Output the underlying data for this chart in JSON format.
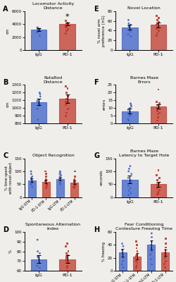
{
  "blue": "#3a5fc8",
  "red": "#c0392b",
  "blue_fill": "#3a5fc8",
  "red_fill": "#c0392b",
  "bg_color": "#f0eeeb",
  "panel_A": {
    "title": "Locomotor Activity\nDistance",
    "label": "A",
    "groups": [
      "IgG",
      "PD-1"
    ],
    "means": [
      3200,
      4000
    ],
    "sems": [
      220,
      230
    ],
    "ylabel": "cm",
    "ylim": [
      0,
      6000
    ],
    "yticks": [
      0,
      2000,
      4000,
      6000
    ],
    "star": true,
    "igg_dots": [
      2200,
      2700,
      2900,
      3000,
      3050,
      3100,
      3200,
      3300,
      3400,
      3500
    ],
    "pd1_dots": [
      2600,
      3000,
      3200,
      3500,
      3600,
      3800,
      3900,
      4000,
      4100,
      4200,
      4500
    ]
  },
  "panel_B": {
    "title": "RotaRod\nDistance",
    "label": "B",
    "groups": [
      "IgG",
      "PD-1"
    ],
    "means": [
      1080,
      1120
    ],
    "sems": [
      45,
      55
    ],
    "ylabel": "cm",
    "ylim": [
      800,
      1300
    ],
    "yticks": [
      800,
      900,
      1000,
      1100,
      1200,
      1300
    ],
    "igg_dots": [
      850,
      990,
      1030,
      1050,
      1060,
      1080,
      1090,
      1110,
      1150,
      1180,
      1200
    ],
    "pd1_dots": [
      900,
      940,
      990,
      1040,
      1060,
      1080,
      1120,
      1150,
      1200,
      1250,
      1280
    ]
  },
  "panel_C": {
    "title": "Object Recognition",
    "label": "C",
    "groups": [
      "IgG-STM",
      "PD-1-STM",
      "IgG-LTM",
      "PD-1-LTM"
    ],
    "means": [
      65,
      60,
      70,
      57
    ],
    "sems": [
      7,
      7,
      6,
      7
    ],
    "ylabel": "% time spent\nwith novel object",
    "ylim": [
      0,
      150
    ],
    "yticks": [
      0,
      50,
      100,
      150
    ],
    "igg_stm_dots": [
      40,
      50,
      55,
      60,
      65,
      70,
      75,
      80,
      90,
      100
    ],
    "pd1_stm_dots": [
      35,
      45,
      50,
      55,
      60,
      65,
      70,
      80,
      90,
      100
    ],
    "igg_ltm_dots": [
      50,
      55,
      65,
      70,
      75,
      80,
      85,
      90,
      95,
      100
    ],
    "pd1_ltm_dots": [
      35,
      40,
      45,
      50,
      55,
      60,
      65,
      70,
      80,
      100
    ]
  },
  "panel_D": {
    "title": "Spontaneous Alternation\nIndex",
    "label": "D",
    "groups": [
      "IgG",
      "PD-1"
    ],
    "means": [
      72,
      72
    ],
    "sems": [
      4,
      4
    ],
    "ylabel": "%",
    "ylim": [
      60,
      100
    ],
    "yticks": [
      60,
      70,
      80,
      90,
      100
    ],
    "igg_dots": [
      63,
      65,
      68,
      70,
      72,
      74,
      75,
      78,
      80,
      92
    ],
    "pd1_dots": [
      60,
      63,
      65,
      68,
      70,
      72,
      74,
      76,
      78,
      80,
      85,
      88
    ]
  },
  "panel_E": {
    "title": "Novel Location",
    "label": "E",
    "groups": [
      "IgG",
      "PD-1"
    ],
    "means": [
      47,
      52
    ],
    "sems": [
      5,
      5
    ],
    "ylabel": "% novel arm\npreference (±G)",
    "ylim": [
      0,
      80
    ],
    "yticks": [
      0,
      20,
      40,
      60,
      80
    ],
    "igg_dots": [
      28,
      32,
      38,
      42,
      46,
      48,
      50,
      52,
      55,
      62
    ],
    "pd1_dots": [
      30,
      35,
      40,
      44,
      48,
      52,
      55,
      58,
      62,
      66,
      70
    ]
  },
  "panel_F": {
    "title": "Barnes Maze\nErrors",
    "label": "F",
    "groups": [
      "IgG",
      "PD-1"
    ],
    "means": [
      8,
      11
    ],
    "sems": [
      1.5,
      1.5
    ],
    "ylabel": "errors",
    "ylim": [
      0,
      25
    ],
    "yticks": [
      0,
      5,
      10,
      15,
      20,
      25
    ],
    "igg_dots": [
      2,
      3,
      5,
      6,
      7,
      8,
      9,
      10,
      11,
      12,
      13
    ],
    "pd1_dots": [
      2,
      4,
      6,
      7,
      8,
      9,
      10,
      11,
      12,
      13,
      14,
      22
    ]
  },
  "panel_G": {
    "title": "Barnes Maze\nLatency to Target Hole",
    "label": "G",
    "groups": [
      "IgG",
      "PD-1"
    ],
    "means": [
      68,
      50
    ],
    "sems": [
      15,
      10
    ],
    "ylabel": "seconds",
    "ylim": [
      0,
      150
    ],
    "yticks": [
      0,
      50,
      100,
      150
    ],
    "igg_dots": [
      8,
      15,
      25,
      35,
      45,
      55,
      65,
      75,
      90,
      100,
      110,
      120
    ],
    "pd1_dots": [
      10,
      15,
      20,
      28,
      35,
      45,
      50,
      55,
      65,
      75,
      85,
      105
    ]
  },
  "panel_H": {
    "title": "Fear Conditioning\nContexture Freezing Time",
    "label": "H",
    "groups": [
      "IgG-STM",
      "PD-1-STM",
      "IgG-LTM",
      "PD-1-LTM"
    ],
    "means": [
      28,
      22,
      40,
      28
    ],
    "sems": [
      6,
      5,
      7,
      5
    ],
    "ylabel": "% freezing",
    "ylim": [
      0,
      60
    ],
    "yticks": [
      0,
      20,
      40,
      60
    ],
    "igg_stm_dots": [
      5,
      10,
      15,
      20,
      25,
      28,
      32,
      38,
      42,
      65
    ],
    "pd1_stm_dots": [
      5,
      8,
      12,
      15,
      18,
      22,
      25,
      30,
      35,
      40,
      45
    ],
    "igg_ltm_dots": [
      10,
      18,
      25,
      30,
      35,
      40,
      45,
      52,
      58
    ],
    "pd1_ltm_dots": [
      5,
      10,
      15,
      20,
      25,
      28,
      32,
      36,
      42,
      50
    ]
  }
}
